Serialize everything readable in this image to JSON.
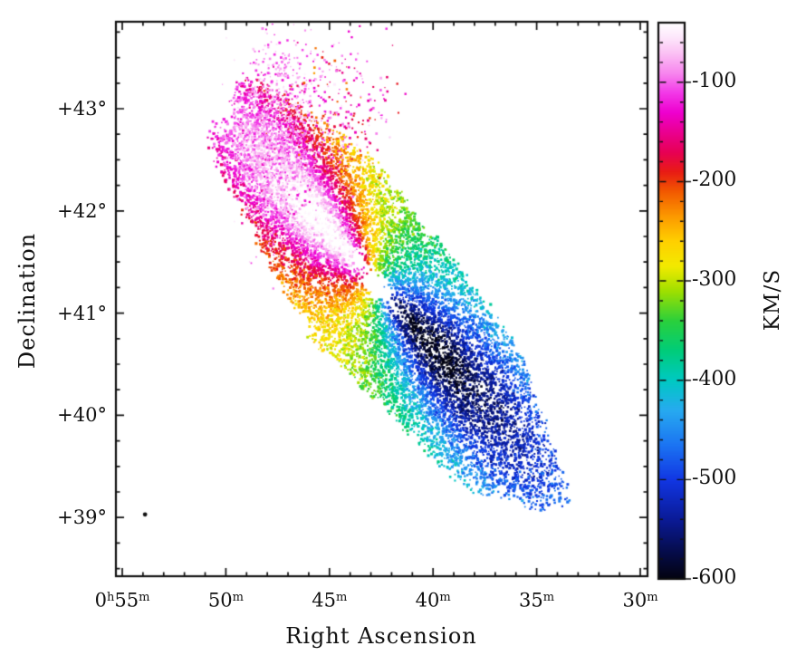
{
  "figure": {
    "xlabel": "Right Ascension",
    "ylabel": "Declination",
    "colorbar_label": "KM/S",
    "x_tick_labels": [
      "0^h55^m",
      "50^m",
      "45^m",
      "40^m",
      "35^m",
      "30^m"
    ],
    "y_tick_labels": [
      "+43°",
      "+42°",
      "+41°",
      "+40°",
      "+39°"
    ],
    "colorbar_tick_labels": [
      "-100",
      "-200",
      "-300",
      "-400",
      "-500",
      "-600"
    ],
    "background_color": "#ffffff",
    "frame_color": "#111111"
  },
  "chart_data": {
    "type": "heatmap",
    "subtype": "radial-velocity-field-map",
    "title": "",
    "xlabel": "Right Ascension",
    "ylabel": "Declination",
    "x_tick_ra_minutes": [
      55,
      50,
      45,
      40,
      35,
      30
    ],
    "x_tick_hour_prefix": "0h on first tick",
    "x_range_ra_minutes": [
      55.3,
      29.6
    ],
    "y_tick_dec_degrees": [
      43,
      42,
      41,
      40,
      39
    ],
    "y_range_dec_degrees": [
      43.85,
      38.43
    ],
    "grid": false,
    "colorbar": {
      "label": "KM/S",
      "position": "right",
      "tick_values": [
        -100,
        -200,
        -300,
        -400,
        -500,
        -600
      ],
      "minor_tick_step": 20,
      "value_range": [
        -40,
        -600
      ],
      "colormap_stops": [
        [
          -40,
          "#ffffff"
        ],
        [
          -55,
          "#fde6fb"
        ],
        [
          -70,
          "#fbc2f4"
        ],
        [
          -90,
          "#f788ee"
        ],
        [
          -110,
          "#f23ae8"
        ],
        [
          -130,
          "#ee00cf"
        ],
        [
          -150,
          "#ea0090"
        ],
        [
          -170,
          "#e70055"
        ],
        [
          -190,
          "#e81c14"
        ],
        [
          -210,
          "#f25a00"
        ],
        [
          -235,
          "#fc9a00"
        ],
        [
          -260,
          "#ffd000"
        ],
        [
          -285,
          "#f2ea00"
        ],
        [
          -310,
          "#9fdf00"
        ],
        [
          -340,
          "#2ad03c"
        ],
        [
          -370,
          "#00cc7a"
        ],
        [
          -400,
          "#00c9c3"
        ],
        [
          -430,
          "#27aaf0"
        ],
        [
          -465,
          "#1b74f2"
        ],
        [
          -500,
          "#1136e3"
        ],
        [
          -540,
          "#0a1a96"
        ],
        [
          -575,
          "#050b45"
        ],
        [
          -600,
          "#03030f"
        ]
      ]
    },
    "velocity_field": {
      "description": "Speckled velocity map of an inclined rotating disk galaxy; NE (upper-left) side least blueshifted (white/pink, ~-50 km/s), SW (lower-right) side most blueshifted (dark navy, ~-590 km/s), green band (~-310 km/s) along the minor axis through the center.",
      "center": {
        "ra_minutes": 42.8,
        "dec_degrees": 41.3
      },
      "position_angle_deg": 38,
      "semi_major_deg": 2.55,
      "axis_ratio": 0.3,
      "systemic_velocity_kms": -312,
      "max_projected_rotation_kms": 285,
      "turnover_radius_px": 18,
      "outer_decline_frac": 0.35,
      "kinematic_twist_deg": -13,
      "central_hole_radius_px": 70,
      "ne_major_axis_velocity_kms": -50,
      "sw_major_axis_velocity_kms": -590
    },
    "outer_features": [
      {
        "name": "ne-pink-plume",
        "ra_minutes": 47.6,
        "dec_degrees": 42.72,
        "sigma_ra_minutes": 0.95,
        "sigma_dec_degrees": 0.5,
        "velocity_kms": -88,
        "velocity_scatter_kms": 28,
        "dots": 1300
      },
      {
        "name": "ne-red-magenta-speckles",
        "ra_minutes": 44.6,
        "dec_degrees": 43.0,
        "sigma_ra_minutes": 1.3,
        "sigma_dec_degrees": 0.33,
        "velocity_kms": -130,
        "velocity_scatter_kms": 45,
        "dots": 380
      }
    ],
    "beam_marker": {
      "ra_minutes": 53.9,
      "dec_degrees": 39.03
    }
  }
}
